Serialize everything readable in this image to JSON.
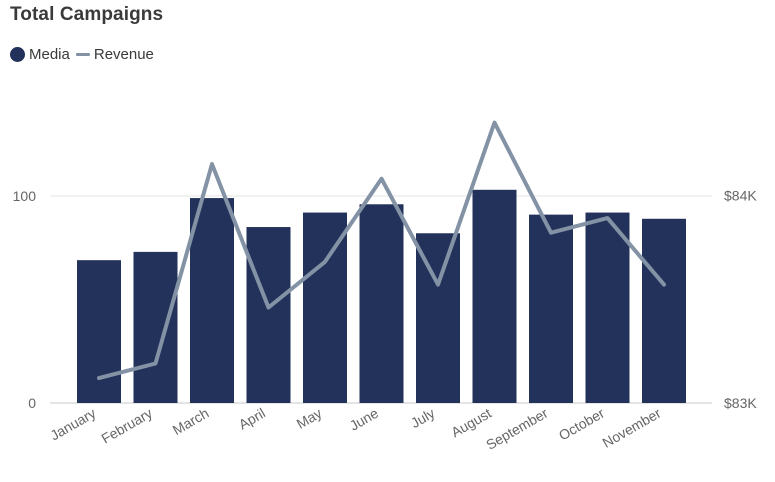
{
  "colors": {
    "media": "#22325a",
    "revenue": "#8393a5",
    "grid": "#e6e6e6",
    "axis": "#c8c8c8"
  },
  "chart_data": {
    "type": "bar",
    "title": "Total Campaigns",
    "legend_placement": "top-left",
    "categories": [
      "January",
      "February",
      "March",
      "April",
      "May",
      "June",
      "July",
      "August",
      "September",
      "October",
      "November"
    ],
    "series": [
      {
        "name": "Media",
        "type": "bar",
        "axis": "left",
        "values": [
          69,
          73,
          99,
          85,
          92,
          96,
          82,
          103,
          91,
          92,
          89
        ]
      },
      {
        "name": "Revenue",
        "type": "line",
        "axis": "right",
        "values": [
          83120,
          83190,
          84150,
          83460,
          83680,
          84080,
          83570,
          84350,
          83820,
          83890,
          83570
        ]
      }
    ],
    "y_left": {
      "ylim": [
        0,
        130
      ],
      "ticks": [
        0,
        100
      ],
      "tick_labels": [
        "0",
        "100"
      ]
    },
    "y_right": {
      "ylim": [
        83000,
        84650
      ],
      "ticks": [
        83000,
        84000
      ],
      "tick_labels": [
        "$83K",
        "$84K"
      ]
    },
    "grid": true
  }
}
